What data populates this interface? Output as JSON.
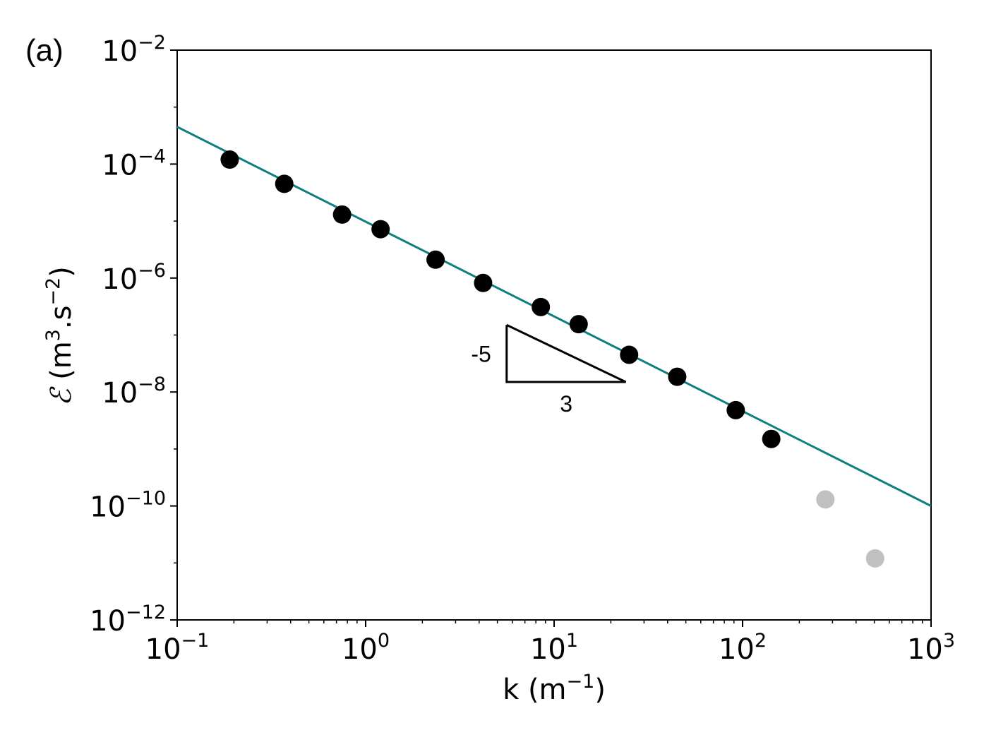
{
  "panel_label": "(a)",
  "chart_data": {
    "type": "scatter",
    "x_scale": "log",
    "y_scale": "log",
    "xlim": [
      0.1,
      1000
    ],
    "ylim": [
      1e-12,
      0.01
    ],
    "x_ticks": [
      {
        "value": 0.1,
        "base": "10",
        "exp": "−1"
      },
      {
        "value": 1,
        "base": "10",
        "exp": "0"
      },
      {
        "value": 10,
        "base": "10",
        "exp": "1"
      },
      {
        "value": 100,
        "base": "10",
        "exp": "2"
      },
      {
        "value": 1000,
        "base": "10",
        "exp": "3"
      }
    ],
    "y_ticks": [
      {
        "value": 0.01,
        "base": "10",
        "exp": "−2"
      },
      {
        "value": 0.0001,
        "base": "10",
        "exp": "−4"
      },
      {
        "value": 1e-06,
        "base": "10",
        "exp": "−6"
      },
      {
        "value": 1e-08,
        "base": "10",
        "exp": "−8"
      },
      {
        "value": 1e-10,
        "base": "10",
        "exp": "−10"
      },
      {
        "value": 1e-12,
        "base": "10",
        "exp": "−12"
      }
    ],
    "xlabel": {
      "pre": "k (m",
      "sup": "−1",
      "post": ")"
    },
    "ylabel": {
      "sym": "ℰ",
      "pre": " (m",
      "sup1": "3",
      "mid": ".s",
      "sup2": "−2",
      "post": ")"
    },
    "grid": false,
    "series": [
      {
        "color": "#000000",
        "points": [
          [
            0.19,
            0.00012
          ],
          [
            0.37,
            4.5e-05
          ],
          [
            0.75,
            1.3e-05
          ],
          [
            1.2,
            7.2e-06
          ],
          [
            2.35,
            2.1e-06
          ],
          [
            4.2,
            8.2e-07
          ],
          [
            8.5,
            3.1e-07
          ],
          [
            13.5,
            1.55e-07
          ],
          [
            25,
            4.5e-08
          ],
          [
            45,
            1.85e-08
          ],
          [
            92,
            4.8e-09
          ],
          [
            142,
            1.5e-09
          ]
        ]
      },
      {
        "color": "#c0c0c0",
        "points": [
          [
            275,
            1.3e-10
          ],
          [
            505,
            1.2e-11
          ]
        ]
      }
    ],
    "fit_line": {
      "color": "#0e7f80",
      "points": [
        [
          0.1,
          0.00045
        ],
        [
          1000,
          1e-10
        ]
      ]
    },
    "slope_triangle": {
      "corner": [
        5.6,
        1.5e-07
      ],
      "right": [
        24,
        1.5e-08
      ],
      "vertical_label": "-5",
      "horizontal_label": "3"
    }
  }
}
